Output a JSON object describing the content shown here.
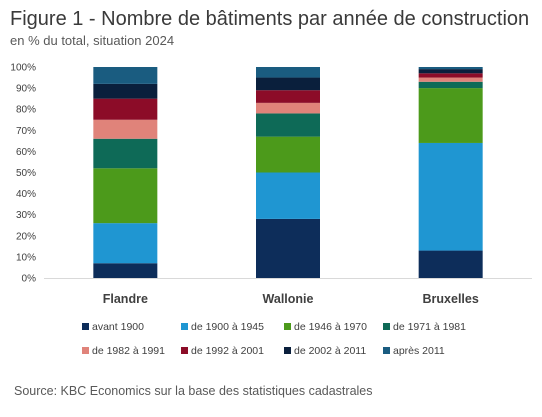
{
  "title": "Figure 1 - Nombre de bâtiments par année de construction",
  "subtitle": "en % du total, situation 2024",
  "source": "Source: KBC Economics sur la base des statistiques cadastrales",
  "chart_data": {
    "type": "bar",
    "stacked": true,
    "categories": [
      "Flandre",
      "Wallonie",
      "Bruxelles"
    ],
    "ylim": [
      0,
      100
    ],
    "yticks": [
      0,
      10,
      20,
      30,
      40,
      50,
      60,
      70,
      80,
      90,
      100
    ],
    "ytick_labels": [
      "0%",
      "10%",
      "20%",
      "30%",
      "40%",
      "50%",
      "60%",
      "70%",
      "80%",
      "90%",
      "100%"
    ],
    "grid": false,
    "legend_position": "bottom",
    "series": [
      {
        "name": "avant 1900",
        "color": "#0d2d5a",
        "values": [
          7,
          28,
          13
        ]
      },
      {
        "name": "de 1900 à 1945",
        "color": "#1f96d2",
        "values": [
          19,
          22,
          51
        ]
      },
      {
        "name": "de 1946 à 1970",
        "color": "#4c9a1b",
        "values": [
          26,
          17,
          26
        ]
      },
      {
        "name": "de 1971 à 1981",
        "color": "#0e6a57",
        "values": [
          14,
          11,
          3
        ]
      },
      {
        "name": "de 1982 à 1991",
        "color": "#e0837a",
        "values": [
          9,
          5,
          2
        ]
      },
      {
        "name": "de 1992 à 2001",
        "color": "#8c0c28",
        "values": [
          10,
          6,
          2
        ]
      },
      {
        "name": "de 2002 à 2011",
        "color": "#0a1f3c",
        "values": [
          7,
          6,
          2
        ]
      },
      {
        "name": "après 2011",
        "color": "#1a5c80",
        "values": [
          8,
          5,
          1
        ]
      }
    ]
  }
}
